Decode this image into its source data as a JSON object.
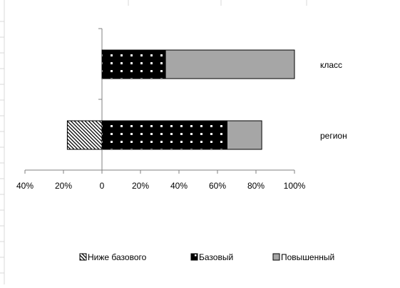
{
  "chart_data": {
    "type": "bar",
    "orientation": "horizontal",
    "stacked": true,
    "categories": [
      "класс",
      "регион"
    ],
    "series": [
      {
        "name": "Ниже базового",
        "values": [
          0,
          -18
        ],
        "pattern": "diagonal-hatch",
        "color": "#000000"
      },
      {
        "name": "Базовый",
        "values": [
          33,
          65
        ],
        "pattern": "black-with-white-dots",
        "color": "#000000"
      },
      {
        "name": "Повышенный",
        "values": [
          67,
          18
        ],
        "pattern": "solid",
        "color": "#a6a6a6"
      }
    ],
    "x_ticks": [
      "40%",
      "20%",
      "0",
      "20%",
      "40%",
      "60%",
      "80%",
      "100%"
    ],
    "xlim": [
      -40,
      100
    ],
    "legend_position": "bottom",
    "grid": false
  }
}
